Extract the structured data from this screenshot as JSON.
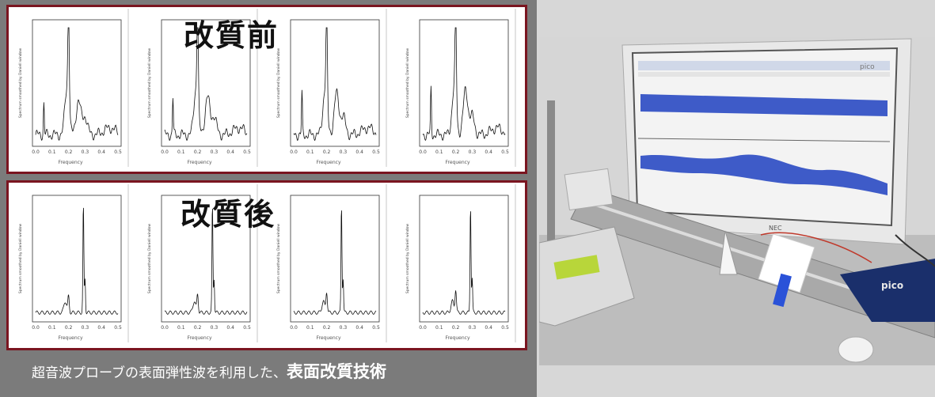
{
  "labels": {
    "before": "改質前",
    "after": "改質後",
    "x_axis": "Frequency",
    "y_axis": "Spectrum smoothed by Daniell window",
    "x_ticks": [
      "0.0",
      "0.1",
      "0.2",
      "0.3",
      "0.4",
      "0.5"
    ]
  },
  "caption": {
    "prefix": "超音波プローブの表面弾性波を利用した、",
    "emphasis": "表面改質技術"
  },
  "photo": {
    "brand": "pico",
    "monitor_brand": "NEC"
  },
  "colors": {
    "frame": "#7a1520",
    "background": "#7b7b7b",
    "trace": "#1d3fbf"
  }
}
